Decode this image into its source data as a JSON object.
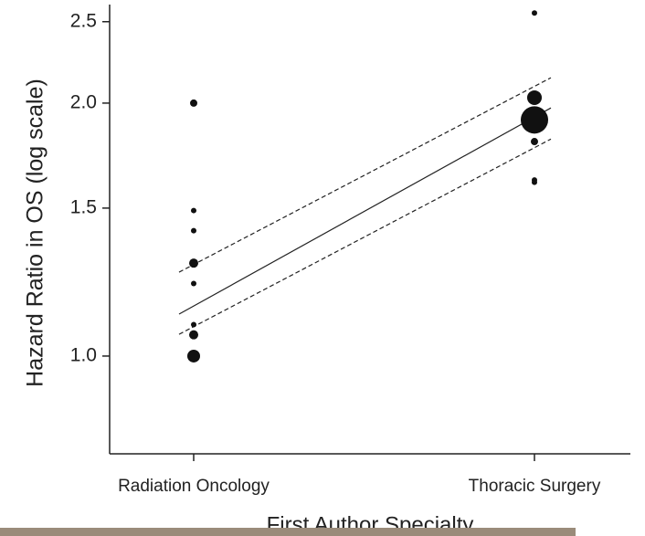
{
  "chart_data": {
    "type": "scatter",
    "y_label": "Hazard Ratio in OS (log scale)",
    "x_label": "First Author Specialty",
    "categories": [
      "Radiation Oncology",
      "Thoracic Surgery"
    ],
    "series": [
      {
        "color": "#111111",
        "values": [
          2.0,
          1.49,
          1.41,
          1.29,
          1.22,
          1.09,
          1.06,
          1.0
        ],
        "sizes": [
          4,
          3,
          3,
          5,
          3,
          3,
          5,
          7
        ]
      },
      {
        "color": "#111111",
        "values": [
          2.56,
          2.03,
          1.91,
          1.8,
          1.62,
          1.61
        ],
        "sizes": [
          3,
          8,
          15,
          4,
          3,
          3
        ]
      }
    ],
    "fit": {
      "values": [
        1.147,
        1.925
      ],
      "ci_upper": [
        1.285,
        2.094
      ],
      "ci_lower": [
        1.084,
        1.77
      ]
    },
    "log_scale": true,
    "ylim": [
      0.765,
      2.62
    ],
    "yticks": [
      {
        "value": 1,
        "label": "1.0"
      },
      1.5,
      {
        "value": 2,
        "label": "2.0"
      },
      2.5
    ]
  }
}
